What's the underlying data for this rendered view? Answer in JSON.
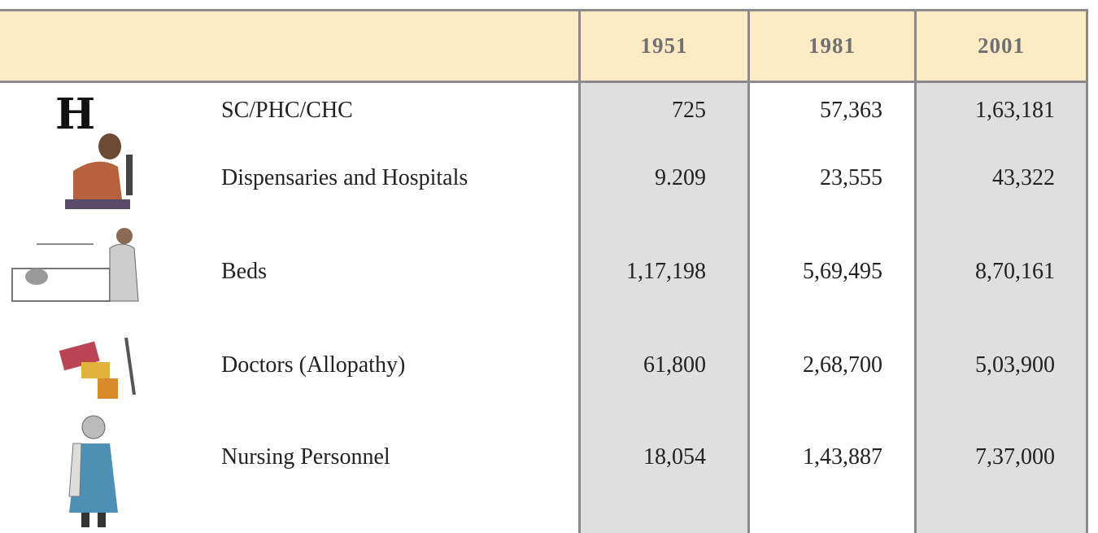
{
  "table": {
    "header": [
      "1951",
      "1981",
      "2001"
    ],
    "rows": [
      {
        "icon": "H",
        "label": "SC/PHC/CHC",
        "values": [
          "725",
          "57,363",
          "1,63,181"
        ]
      },
      {
        "label": "Dispensaries and Hospitals",
        "values": [
          "9.209",
          "23,555",
          "43,322"
        ]
      },
      {
        "label": "Beds",
        "values": [
          "1,17,198",
          "5,69,495",
          "8,70,161"
        ]
      },
      {
        "label": "Doctors (Allopathy)",
        "values": [
          "61,800",
          "2,68,700",
          "5,03,900"
        ]
      },
      {
        "label": "Nursing Personnel",
        "values": [
          "18,054",
          "1,43,887",
          "7,37,000"
        ]
      }
    ]
  }
}
